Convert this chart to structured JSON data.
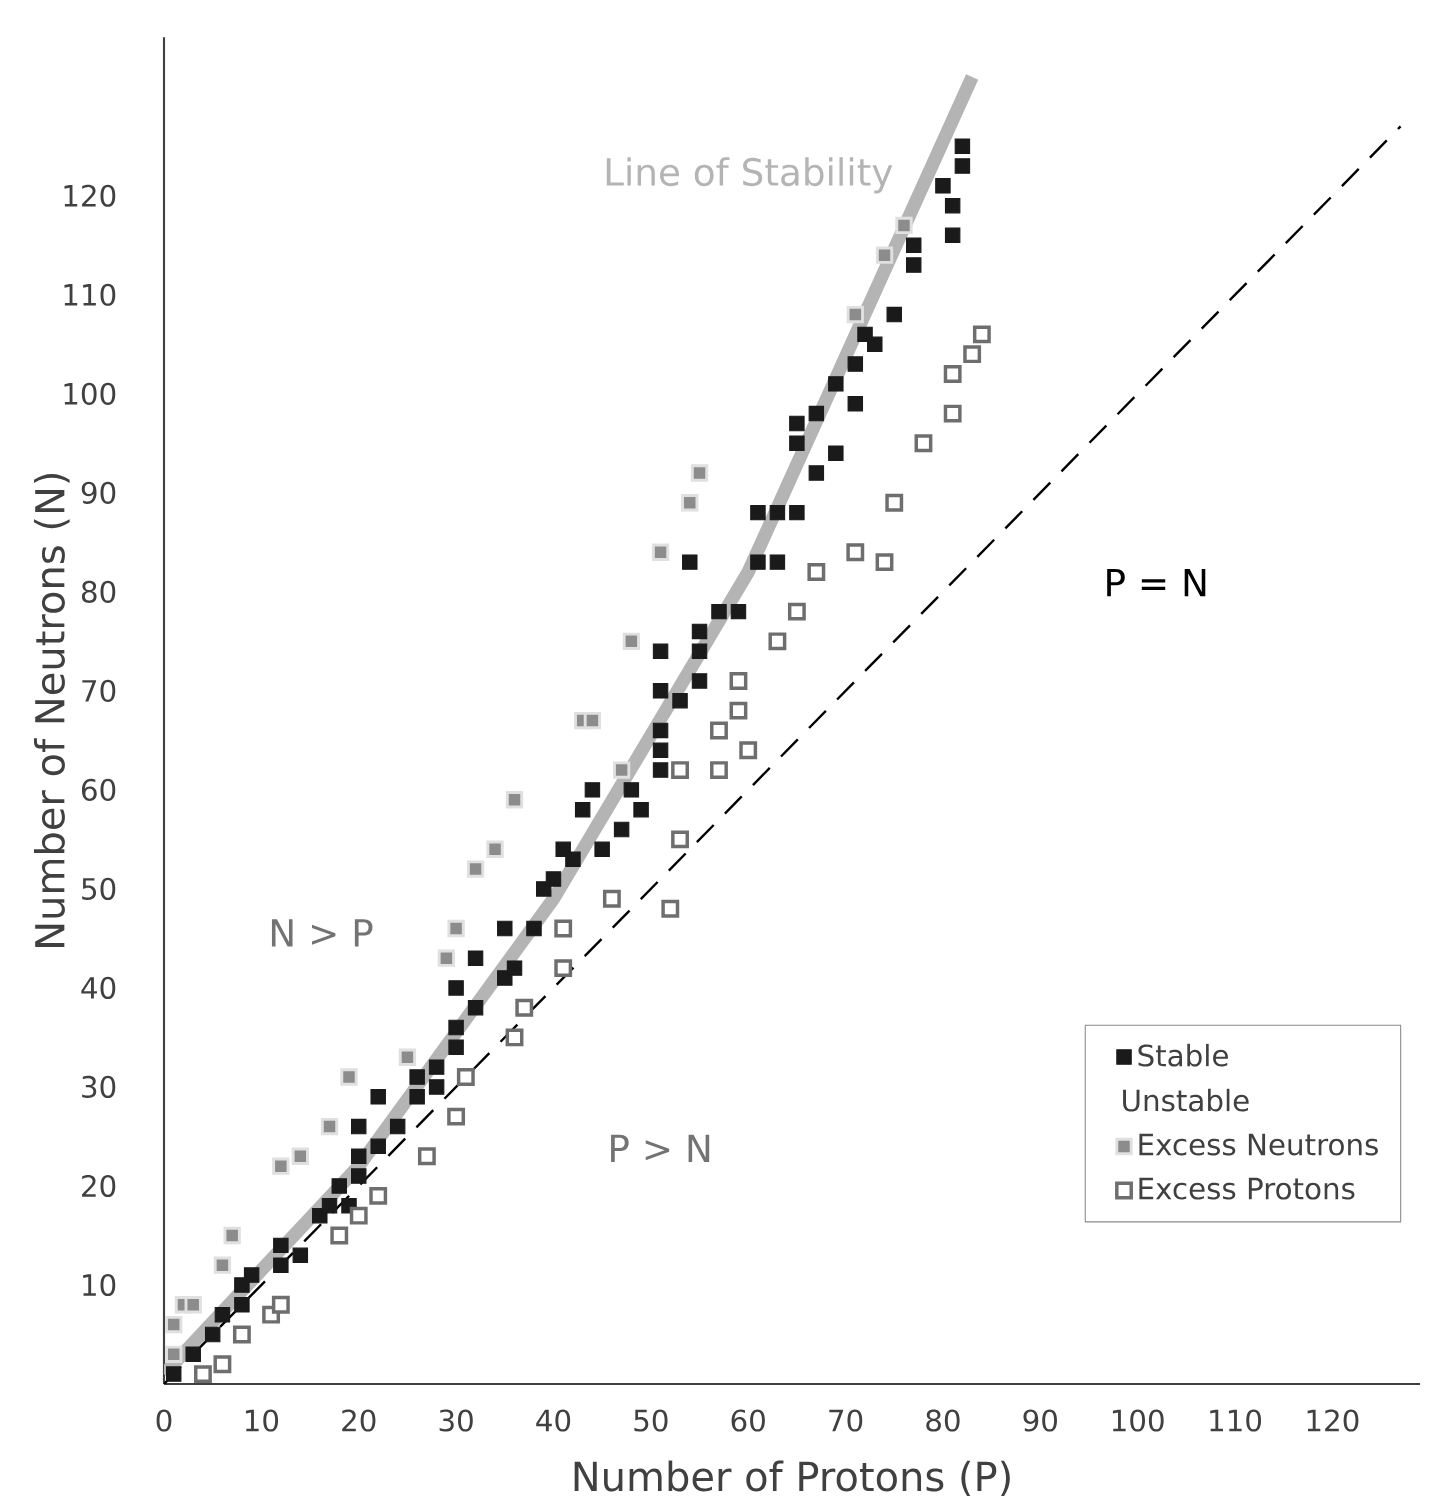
{
  "chart_data": {
    "type": "scatter",
    "xlabel": "Number of Protons (P)",
    "ylabel": "Number of Neutrons (N)",
    "xlim": [
      0,
      129
    ],
    "ylim": [
      0,
      136
    ],
    "xticks": [
      0,
      10,
      20,
      30,
      40,
      50,
      60,
      70,
      80,
      90,
      100,
      110,
      120
    ],
    "yticks": [
      10,
      20,
      30,
      40,
      50,
      60,
      70,
      80,
      90,
      100,
      110,
      120
    ],
    "legend": "bottom right",
    "legend_title": "Unstable",
    "annotations": [
      "N > P",
      "P > N"
    ],
    "series": [
      {
        "name": "Line of Stability",
        "type": "line",
        "marker": "none",
        "line_style": "solid",
        "color": "#b4b4b4",
        "x": [
          0,
          20,
          40,
          60,
          83
        ],
        "values": [
          1,
          22,
          49,
          82,
          132
        ]
      },
      {
        "name": "P = N",
        "type": "line",
        "marker": "none",
        "line_style": "dashed",
        "color": "#000000",
        "x": [
          0,
          127
        ],
        "values": [
          0,
          127
        ]
      },
      {
        "name": "Stable",
        "marker": "square",
        "color": "#1a1a1a",
        "x": [
          1,
          3,
          5,
          6,
          8,
          8,
          9,
          12,
          12,
          14,
          16,
          17,
          18,
          19,
          20,
          20,
          20,
          22,
          22,
          24,
          26,
          26,
          28,
          28,
          30,
          30,
          30,
          32,
          32,
          35,
          36,
          51,
          55,
          51,
          55,
          53,
          51,
          51,
          51,
          48,
          49,
          44,
          43,
          47,
          41,
          45,
          42,
          39,
          40,
          35,
          38,
          69,
          67,
          71,
          65,
          65,
          69,
          67,
          61,
          63,
          65,
          54,
          61,
          63,
          57,
          59,
          55,
          82,
          82,
          80,
          81,
          81,
          77,
          77,
          75,
          72,
          73,
          71
        ],
        "values": [
          1,
          3,
          5,
          7,
          8,
          10,
          11,
          12,
          14,
          13,
          17,
          18,
          20,
          18,
          21,
          23,
          26,
          24,
          29,
          26,
          31,
          29,
          32,
          30,
          34,
          36,
          40,
          43,
          38,
          41,
          42,
          74,
          74,
          70,
          71,
          69,
          66,
          64,
          62,
          60,
          58,
          60,
          58,
          56,
          54,
          54,
          53,
          50,
          51,
          46,
          46,
          101,
          98,
          99,
          97,
          95,
          94,
          92,
          88,
          88,
          88,
          83,
          83,
          83,
          78,
          78,
          76,
          125,
          123,
          121,
          119,
          116,
          115,
          113,
          108,
          106,
          105,
          103
        ]
      },
      {
        "name": "Excess Neutrons",
        "marker": "square",
        "color": "#8c8c8c",
        "x": [
          1,
          1,
          2,
          3,
          6,
          7,
          12,
          14,
          17,
          19,
          25,
          29,
          48,
          43,
          44,
          36,
          47,
          34,
          32,
          30,
          55,
          54,
          51,
          76,
          74,
          71
        ],
        "values": [
          3,
          6,
          8,
          8,
          12,
          15,
          22,
          23,
          26,
          31,
          33,
          43,
          75,
          67,
          67,
          59,
          62,
          54,
          52,
          46,
          92,
          89,
          84,
          117,
          114,
          108
        ]
      },
      {
        "name": "Excess Protons",
        "marker": "square",
        "color": "#6e6e6e",
        "x": [
          4,
          6,
          8,
          11,
          12,
          18,
          20,
          22,
          27,
          30,
          31,
          36,
          37,
          63,
          59,
          59,
          57,
          60,
          53,
          57,
          53,
          46,
          52,
          41,
          41,
          81,
          81,
          78,
          75,
          71,
          74,
          67,
          65,
          84,
          83
        ],
        "values": [
          1,
          2,
          5,
          7,
          8,
          15,
          17,
          19,
          23,
          27,
          31,
          35,
          38,
          75,
          71,
          68,
          66,
          64,
          62,
          62,
          55,
          49,
          48,
          46,
          42,
          102,
          98,
          95,
          89,
          84,
          83,
          82,
          78,
          106,
          104
        ]
      }
    ]
  }
}
